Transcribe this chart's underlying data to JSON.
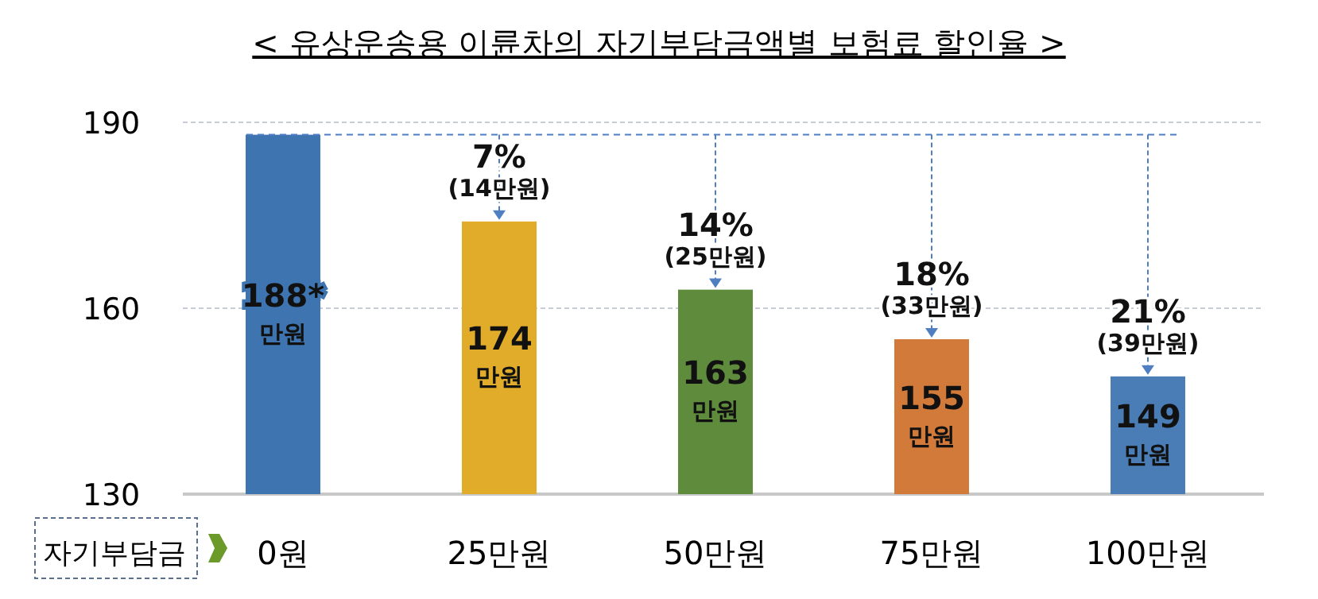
{
  "chart_data": {
    "type": "bar",
    "title": "< 유상운송용 이륜차의 자기부담금액별 보험료 할인율 >",
    "xlabel": "자기부담금",
    "categories": [
      "0원",
      "25만원",
      "50만원",
      "75만원",
      "100만원"
    ],
    "values": [
      188,
      174,
      163,
      155,
      149
    ],
    "colors": [
      "#3e74b0",
      "#e0ac2a",
      "#5f8c3c",
      "#d27a3a",
      "#4a7db5"
    ],
    "value_labels": [
      "188*\n만원",
      "174\n만원",
      "163\n만원",
      "155\n만원",
      "149\n만원"
    ],
    "ylim": [
      130,
      190
    ],
    "yticks": [
      130,
      160,
      190
    ],
    "grid": "y",
    "ref_lines": [
      {
        "axis": "y",
        "value": 188,
        "color": "#4f7fc0",
        "line_style": "dashed"
      }
    ],
    "annotations": [
      {
        "text": "7%\n(14만원)",
        "x": "25만원",
        "y": 174
      },
      {
        "text": "14%\n(25만원)",
        "x": "50만원",
        "y": 163
      },
      {
        "text": "18%\n(33만원)",
        "x": "75만원",
        "y": 155
      },
      {
        "text": "21%\n(39만원)",
        "x": "100만원",
        "y": 149
      }
    ]
  }
}
